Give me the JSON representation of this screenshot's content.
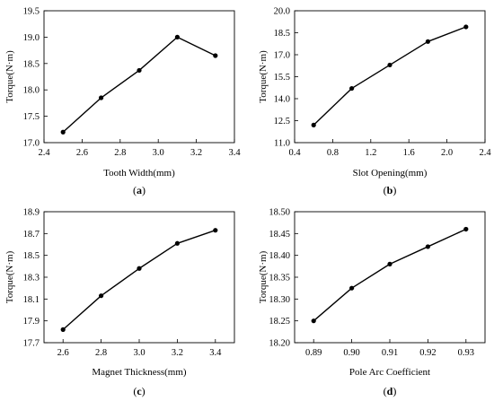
{
  "chart_data": [
    {
      "panel_label": "(a)",
      "panel_letter": "a",
      "type": "line",
      "xlabel": "Tooth Width(mm)",
      "ylabel": "Torque(N·m)",
      "x": [
        2.5,
        2.7,
        2.9,
        3.1,
        3.3
      ],
      "y": [
        17.2,
        17.85,
        18.37,
        19.0,
        18.65
      ],
      "xlim": [
        2.4,
        3.4
      ],
      "ylim": [
        17.0,
        19.5
      ],
      "xticks": [
        "2.4",
        "2.6",
        "2.8",
        "3.0",
        "3.2",
        "3.4"
      ],
      "yticks": [
        "17.0",
        "17.5",
        "18.0",
        "18.5",
        "19.0",
        "19.5"
      ],
      "grid": false
    },
    {
      "panel_label": "(b)",
      "panel_letter": "b",
      "type": "line",
      "xlabel": "Slot Opening(mm)",
      "ylabel": "Torque(N·m)",
      "x": [
        0.6,
        1.0,
        1.4,
        1.8,
        2.2
      ],
      "y": [
        12.2,
        14.7,
        16.3,
        17.9,
        18.9
      ],
      "xlim": [
        0.4,
        2.4
      ],
      "ylim": [
        11.0,
        20.0
      ],
      "xticks": [
        "0.4",
        "0.8",
        "1.2",
        "1.6",
        "2.0",
        "2.4"
      ],
      "yticks": [
        "11.0",
        "12.5",
        "14.0",
        "15.5",
        "17.0",
        "18.5",
        "20.0"
      ],
      "grid": false
    },
    {
      "panel_label": "(c)",
      "panel_letter": "c",
      "type": "line",
      "xlabel": "Magnet Thickness(mm)",
      "ylabel": "Torque(N·m)",
      "x": [
        2.6,
        2.8,
        3.0,
        3.2,
        3.4
      ],
      "y": [
        17.82,
        18.13,
        18.38,
        18.61,
        18.73
      ],
      "xlim": [
        2.5,
        3.5
      ],
      "ylim": [
        17.7,
        18.9
      ],
      "xticks": [
        "2.6",
        "2.8",
        "3.0",
        "3.2",
        "3.4"
      ],
      "yticks": [
        "17.7",
        "17.9",
        "18.1",
        "18.3",
        "18.5",
        "18.7",
        "18.9"
      ],
      "grid": false
    },
    {
      "panel_label": "(d)",
      "panel_letter": "d",
      "type": "line",
      "xlabel": "Pole Arc Coefficient",
      "ylabel": "Torque(N·m)",
      "x": [
        0.89,
        0.9,
        0.91,
        0.92,
        0.93
      ],
      "y": [
        18.25,
        18.325,
        18.38,
        18.42,
        18.46
      ],
      "xlim": [
        0.885,
        0.935
      ],
      "ylim": [
        18.2,
        18.5
      ],
      "xticks": [
        "0.89",
        "0.90",
        "0.91",
        "0.92",
        "0.93"
      ],
      "yticks": [
        "18.20",
        "18.25",
        "18.30",
        "18.35",
        "18.40",
        "18.45",
        "18.50"
      ],
      "grid": false
    }
  ]
}
